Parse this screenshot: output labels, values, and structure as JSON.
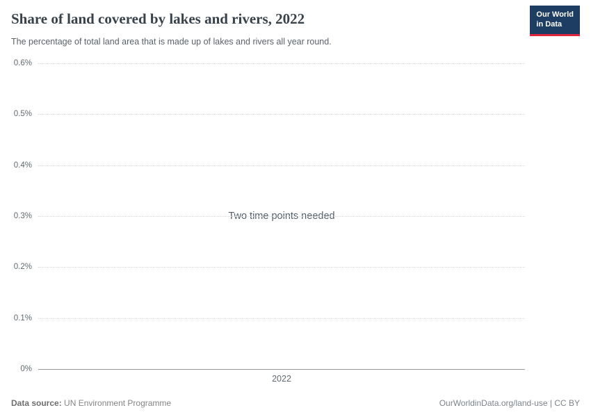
{
  "header": {
    "title": "Share of land covered by lakes and rivers, 2022",
    "subtitle": "The percentage of total land area that is made up of lakes and rivers all year round.",
    "logo": {
      "line1": "Our World",
      "line2": "in Data"
    }
  },
  "chart_data": {
    "type": "line",
    "title": "Share of land covered by lakes and rivers, 2022",
    "series": [],
    "empty_message": "Two time points needed",
    "xlabel": "",
    "ylabel": "",
    "ylim": [
      0,
      0.6
    ],
    "yticks": [
      "0%",
      "0.1%",
      "0.2%",
      "0.3%",
      "0.4%",
      "0.5%",
      "0.6%"
    ],
    "xticks": [
      "2022"
    ],
    "grid": true,
    "legend": "none"
  },
  "footer": {
    "datasource_label": "Data source:",
    "datasource_value": "UN Environment Programme",
    "credit": "OurWorldinData.org/land-use | CC BY"
  },
  "colors": {
    "logo_navy": "#1d3d63",
    "logo_red": "#e0243c",
    "grid": "#dadada",
    "axis": "#9b9b9b",
    "title_text": "#38424b",
    "muted_text": "#858585"
  }
}
